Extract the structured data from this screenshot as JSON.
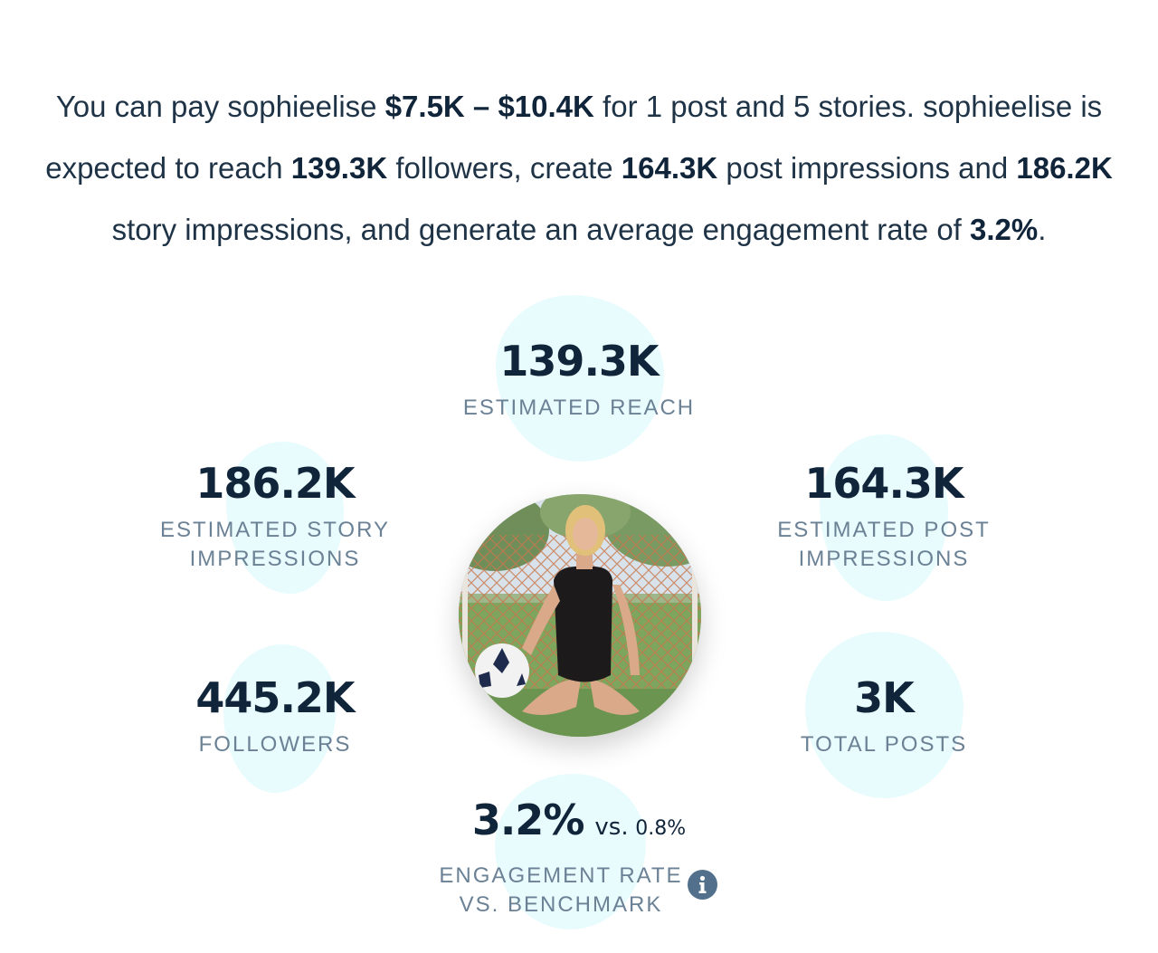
{
  "summary": {
    "part1": "You can pay sophieelise ",
    "price_range": "$7.5K – $10.4K",
    "part2": " for 1 post and 5 stories. sophieelise is expected to reach ",
    "reach": "139.3K",
    "part3": " followers, create ",
    "post_impressions": "164.3K",
    "part4": " post impressions and ",
    "story_impressions": "186.2K",
    "part5": " story impressions, and generate an average engagement rate of ",
    "engagement_rate": "3.2%",
    "part6": "."
  },
  "stats": {
    "reach": {
      "value": "139.3K",
      "label": "ESTIMATED REACH"
    },
    "story_impressions": {
      "value": "186.2K",
      "label_line1": "ESTIMATED STORY",
      "label_line2": "IMPRESSIONS"
    },
    "post_impressions": {
      "value": "164.3K",
      "label_line1": "ESTIMATED POST",
      "label_line2": "IMPRESSIONS"
    },
    "followers": {
      "value": "445.2K",
      "label": "FOLLOWERS"
    },
    "total_posts": {
      "value": "3K",
      "label": "TOTAL POSTS"
    },
    "engagement": {
      "value": "3.2%",
      "vs_word": "vs.",
      "benchmark": "0.8%",
      "label_line1": "ENGAGEMENT RATE",
      "label_line2": "VS. BENCHMARK"
    }
  },
  "icons": {
    "info": "info-icon",
    "avatar": "profile-avatar"
  },
  "colors": {
    "text_dark": "#10243a",
    "label_gray": "#6b8195",
    "blob": "#e8fbfd",
    "info_icon": "#52708c"
  }
}
